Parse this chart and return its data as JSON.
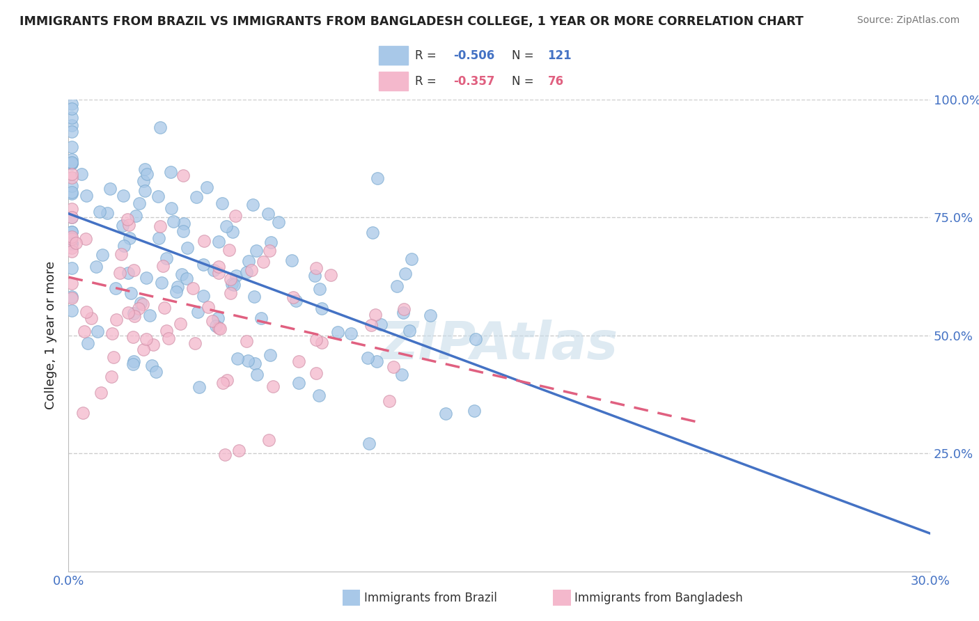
{
  "title": "IMMIGRANTS FROM BRAZIL VS IMMIGRANTS FROM BANGLADESH COLLEGE, 1 YEAR OR MORE CORRELATION CHART",
  "source": "Source: ZipAtlas.com",
  "ylabel_label": "College, 1 year or more",
  "legend_brazil_r": "-0.506",
  "legend_brazil_n": "121",
  "legend_bangladesh_r": "-0.357",
  "legend_bangladesh_n": "76",
  "brazil_color": "#a8c8e8",
  "bangladesh_color": "#f4b8cc",
  "brazil_line_color": "#4472c4",
  "bangladesh_line_color": "#e06080",
  "brazil_r": -0.506,
  "brazil_n": 121,
  "bangladesh_r": -0.357,
  "bangladesh_n": 76,
  "xmin": 0.0,
  "xmax": 0.3,
  "ymin": 0.0,
  "ymax": 1.0,
  "watermark": "ZIPAtlas",
  "background_color": "#ffffff",
  "grid_color": "#cccccc",
  "accent_color": "#4472c4",
  "text_color": "#222222"
}
